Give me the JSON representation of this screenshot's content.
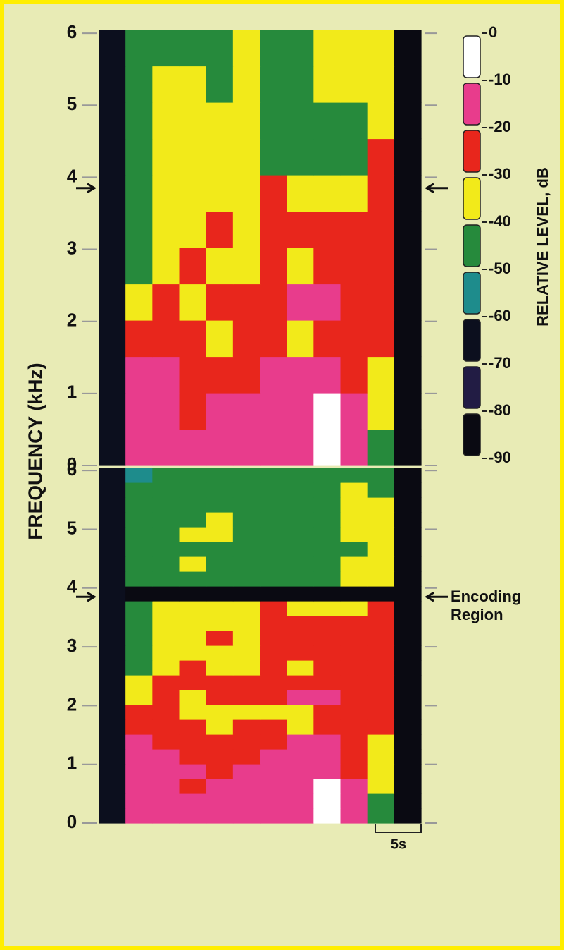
{
  "chart_data": {
    "type": "heatmap",
    "ylabel": "FREQUENCY (kHz)",
    "arrow_y": 3.85,
    "annotation": "Encoding Region",
    "scale_bar_label": "5s",
    "colorbar": {
      "label": "RELATIVE LEVEL, dB",
      "ticks": [
        0,
        -10,
        -20,
        -30,
        -40,
        -50,
        -60,
        -70,
        -80,
        -90
      ],
      "colors": [
        "#ffffff",
        "#e83c8c",
        "#e8261c",
        "#f2ea1a",
        "#268a3c",
        "#1e8c8c",
        "#0c0f1e",
        "#221c44",
        "#0a0a12"
      ]
    },
    "panels": [
      {
        "ylim": [
          0,
          6.05
        ],
        "yticks": [
          0,
          1,
          2,
          3,
          4,
          5,
          6
        ],
        "values": [
          [
            -70,
            -15,
            -15,
            -15,
            -15,
            -15,
            -15,
            -15,
            -10,
            -20,
            -50,
            -90
          ],
          [
            -70,
            -15,
            -20,
            -25,
            -20,
            -20,
            -20,
            -15,
            -10,
            -20,
            -40,
            -90
          ],
          [
            -70,
            -20,
            -20,
            -30,
            -30,
            -30,
            -20,
            -20,
            -20,
            -25,
            -35,
            -90
          ],
          [
            -70,
            -25,
            -30,
            -30,
            -35,
            -30,
            -30,
            -35,
            -25,
            -30,
            -30,
            -90
          ],
          [
            -70,
            -40,
            -30,
            -35,
            -30,
            -30,
            -25,
            -20,
            -20,
            -25,
            -30,
            -90
          ],
          [
            -70,
            -45,
            -35,
            -30,
            -35,
            -35,
            -30,
            -35,
            -30,
            -30,
            -30,
            -90
          ],
          [
            -70,
            -50,
            -35,
            -35,
            -30,
            -35,
            -30,
            -25,
            -25,
            -25,
            -30,
            -90
          ],
          [
            -70,
            -45,
            -35,
            -35,
            -40,
            -35,
            -30,
            -35,
            -35,
            -35,
            -30,
            -90
          ],
          [
            -70,
            -45,
            -40,
            -35,
            -35,
            -40,
            -50,
            -50,
            -50,
            -50,
            -30,
            -90
          ],
          [
            -70,
            -45,
            -40,
            -35,
            -35,
            -40,
            -50,
            -50,
            -50,
            -45,
            -35,
            -90
          ],
          [
            -70,
            -50,
            -40,
            -40,
            -45,
            -40,
            -45,
            -45,
            -40,
            -35,
            -35,
            -90
          ],
          [
            -70,
            -50,
            -45,
            -45,
            -45,
            -40,
            -45,
            -45,
            -40,
            -35,
            -40,
            -90
          ]
        ]
      },
      {
        "ylim": [
          0,
          6.05
        ],
        "yticks": [
          0,
          1,
          2,
          3,
          4,
          5,
          6
        ],
        "values": [
          [
            -70,
            -15,
            -15,
            -15,
            -15,
            -15,
            -15,
            -15,
            -10,
            -20,
            -50,
            -90
          ],
          [
            -70,
            -15,
            -20,
            -15,
            -15,
            -20,
            -15,
            -15,
            -10,
            -20,
            -50,
            -90
          ],
          [
            -70,
            -15,
            -20,
            -25,
            -20,
            -20,
            -20,
            -15,
            -10,
            -20,
            -40,
            -90
          ],
          [
            -70,
            -20,
            -15,
            -20,
            -25,
            -20,
            -20,
            -20,
            -15,
            -25,
            -40,
            -90
          ],
          [
            -70,
            -20,
            -20,
            -30,
            -30,
            -30,
            -20,
            -20,
            -20,
            -25,
            -35,
            -90
          ],
          [
            -70,
            -20,
            -25,
            -30,
            -30,
            -25,
            -25,
            -20,
            -20,
            -30,
            -35,
            -90
          ],
          [
            -70,
            -25,
            -30,
            -30,
            -35,
            -30,
            -30,
            -35,
            -25,
            -30,
            -30,
            -90
          ],
          [
            -70,
            -30,
            -30,
            -35,
            -35,
            -35,
            -35,
            -40,
            -30,
            -30,
            -30,
            -90
          ],
          [
            -70,
            -40,
            -30,
            -35,
            -30,
            -30,
            -25,
            -20,
            -20,
            -25,
            -30,
            -90
          ],
          [
            -70,
            -40,
            -30,
            -30,
            -30,
            -30,
            -25,
            -25,
            -25,
            -30,
            -30,
            -90
          ],
          [
            -70,
            -45,
            -35,
            -30,
            -35,
            -35,
            -30,
            -35,
            -30,
            -30,
            -30,
            -90
          ],
          [
            -70,
            -45,
            -35,
            -35,
            -35,
            -35,
            -30,
            -30,
            -30,
            -30,
            -30,
            -90
          ],
          [
            -70,
            -50,
            -35,
            -35,
            -30,
            -35,
            -30,
            -25,
            -25,
            -25,
            -30,
            -90
          ],
          [
            -70,
            -50,
            -35,
            -35,
            -35,
            -35,
            -30,
            -30,
            -30,
            -30,
            -30,
            -90
          ],
          [
            -70,
            -45,
            -35,
            -35,
            -40,
            -35,
            -30,
            -35,
            -35,
            -35,
            -30,
            -90
          ],
          [
            -70,
            -90,
            -90,
            -90,
            -90,
            -90,
            -90,
            -90,
            -90,
            -90,
            -90,
            -90
          ],
          [
            -70,
            -50,
            -45,
            -45,
            -45,
            -45,
            -50,
            -50,
            -50,
            -40,
            -35,
            -90
          ],
          [
            -70,
            -50,
            -45,
            -40,
            -45,
            -45,
            -50,
            -50,
            -50,
            -40,
            -35,
            -90
          ],
          [
            -70,
            -50,
            -50,
            -45,
            -45,
            -45,
            -50,
            -50,
            -50,
            -45,
            -40,
            -90
          ],
          [
            -70,
            -50,
            -50,
            -40,
            -40,
            -45,
            -50,
            -50,
            -50,
            -40,
            -40,
            -90
          ],
          [
            -70,
            -50,
            -50,
            -45,
            -40,
            -45,
            -50,
            -45,
            -45,
            -40,
            -40,
            -90
          ],
          [
            -70,
            -50,
            -50,
            -45,
            -45,
            -45,
            -45,
            -45,
            -45,
            -40,
            -40,
            -90
          ],
          [
            -70,
            -50,
            -50,
            -45,
            -45,
            -45,
            -50,
            -45,
            -45,
            -40,
            -45,
            -90
          ],
          [
            -70,
            -55,
            -50,
            -50,
            -45,
            -45,
            -50,
            -45,
            -45,
            -45,
            -45,
            -90
          ]
        ]
      }
    ]
  }
}
